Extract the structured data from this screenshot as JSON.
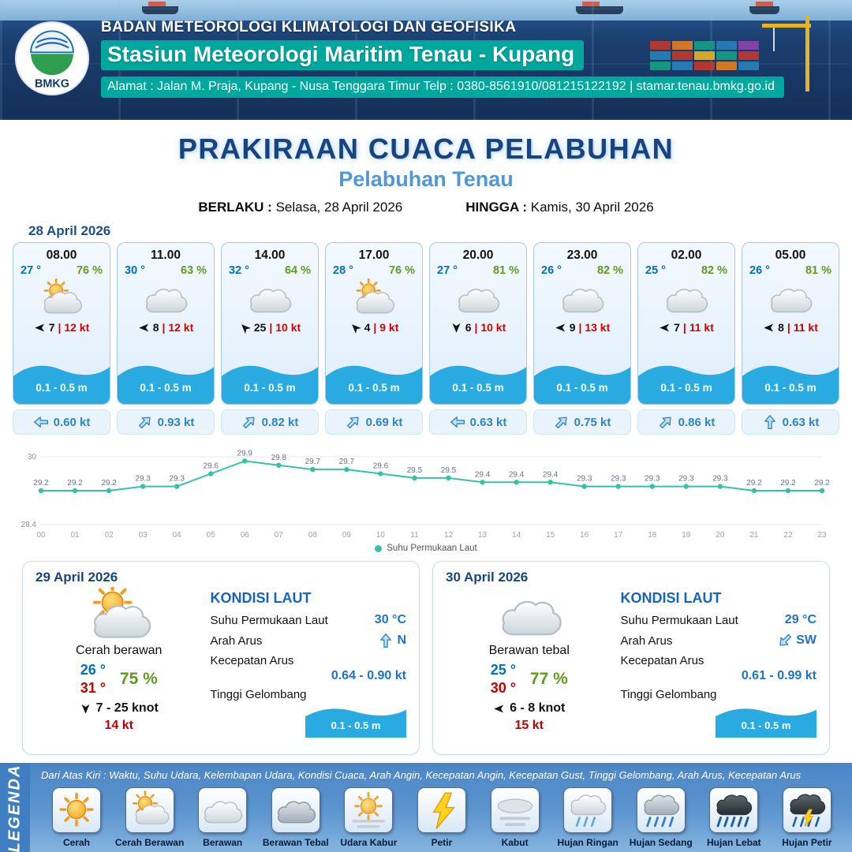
{
  "header": {
    "logo_text": "BMKG",
    "agency": "BADAN METEOROLOGI KLIMATOLOGI DAN GEOFISIKA",
    "station": "Stasiun Meteorologi Maritim Tenau - Kupang",
    "address": "Alamat : Jalan M. Praja, Kupang - Nusa Tenggara Timur Telp : 0380-8561910/081215122192  | stamar.tenau.bmkg.go.id"
  },
  "title": {
    "main": "PRAKIRAAN CUACA PELABUHAN",
    "subtitle": "Pelabuhan Tenau",
    "valid_label": "BERLAKU :",
    "valid_value": "Selasa, 28 April 2026",
    "until_label": "HINGGA :",
    "until_value": "Kamis, 30 April 2026"
  },
  "forecast_date": "28 April 2026",
  "cards": [
    {
      "time": "08.00",
      "temp": "27 °",
      "humidity": "76 %",
      "icon": "cerah-berawan",
      "wind_dir": "W",
      "wind_speed": "7",
      "wind_gust": "| 12 kt",
      "wave": "0.1 - 0.5 m",
      "current_dir": "W",
      "current_speed": "0.60 kt"
    },
    {
      "time": "11.00",
      "temp": "30 °",
      "humidity": "63 %",
      "icon": "berawan",
      "wind_dir": "W",
      "wind_speed": "8",
      "wind_gust": "| 12 kt",
      "wave": "0.1 - 0.5 m",
      "current_dir": "NE",
      "current_speed": "0.93 kt"
    },
    {
      "time": "14.00",
      "temp": "32 °",
      "humidity": "64 %",
      "icon": "berawan",
      "wind_dir": "NW",
      "wind_speed": "25",
      "wind_gust": "| 10 kt",
      "wave": "0.1 - 0.5 m",
      "current_dir": "NE",
      "current_speed": "0.82 kt"
    },
    {
      "time": "17.00",
      "temp": "28 °",
      "humidity": "76 %",
      "icon": "cerah-berawan",
      "wind_dir": "NW",
      "wind_speed": "4",
      "wind_gust": "| 9 kt",
      "wave": "0.1 - 0.5 m",
      "current_dir": "NE",
      "current_speed": "0.69 kt"
    },
    {
      "time": "20.00",
      "temp": "27 °",
      "humidity": "81 %",
      "icon": "berawan",
      "wind_dir": "S",
      "wind_speed": "6",
      "wind_gust": "| 10 kt",
      "wave": "0.1 - 0.5 m",
      "current_dir": "W",
      "current_speed": "0.63 kt"
    },
    {
      "time": "23.00",
      "temp": "26 °",
      "humidity": "82 %",
      "icon": "berawan",
      "wind_dir": "W",
      "wind_speed": "9",
      "wind_gust": "| 13 kt",
      "wave": "0.1 - 0.5 m",
      "current_dir": "NE",
      "current_speed": "0.75 kt"
    },
    {
      "time": "02.00",
      "temp": "25 °",
      "humidity": "82 %",
      "icon": "berawan",
      "wind_dir": "W",
      "wind_speed": "7",
      "wind_gust": "| 11 kt",
      "wave": "0.1 - 0.5 m",
      "current_dir": "NE",
      "current_speed": "0.86 kt"
    },
    {
      "time": "05.00",
      "temp": "26 °",
      "humidity": "81 %",
      "icon": "berawan",
      "wind_dir": "W",
      "wind_speed": "8",
      "wind_gust": "| 11 kt",
      "wave": "0.1 - 0.5 m",
      "current_dir": "N",
      "current_speed": "0.63 kt"
    }
  ],
  "chart_data": {
    "type": "line",
    "x": [
      "00",
      "01",
      "02",
      "03",
      "04",
      "05",
      "06",
      "07",
      "08",
      "09",
      "10",
      "11",
      "12",
      "13",
      "14",
      "15",
      "16",
      "17",
      "18",
      "19",
      "20",
      "21",
      "22",
      "23"
    ],
    "series": [
      {
        "name": "Suhu Permukaan Laut",
        "values": [
          29.2,
          29.2,
          29.2,
          29.3,
          29.3,
          29.6,
          29.9,
          29.8,
          29.7,
          29.7,
          29.6,
          29.5,
          29.5,
          29.4,
          29.4,
          29.4,
          29.3,
          29.3,
          29.3,
          29.3,
          29.3,
          29.2,
          29.2,
          29.2
        ]
      }
    ],
    "ylim": [
      28.4,
      30
    ],
    "legend": "Suhu Permukaan Laut",
    "legend_position": "bottom",
    "grid": true,
    "line_color": "#35c0a8"
  },
  "day_summaries": [
    {
      "date": "29 April 2026",
      "condition": "Cerah berawan",
      "icon": "cerah-berawan",
      "temp_min": "26 °",
      "temp_max": "31 °",
      "humidity": "75 %",
      "wind_dir": "S",
      "wind_range": "7  - 25 knot",
      "gust": "14 kt",
      "sea": {
        "title": "KONDISI LAUT",
        "sst_label": "Suhu Permukaan Laut",
        "sst": "30 °C",
        "current_dir_label": "Arah Arus",
        "current_dir": "N",
        "current_speed_label": "Kecepatan Arus",
        "current_speed": "0.64 - 0.90 kt",
        "wave_label": "Tinggi Gelombang",
        "wave": "0.1 - 0.5 m"
      }
    },
    {
      "date": "30 April 2026",
      "condition": "Berawan tebal",
      "icon": "berawan",
      "temp_min": "25 °",
      "temp_max": "30 °",
      "humidity": "77 %",
      "wind_dir": "W",
      "wind_range": "6  - 8 knot",
      "gust": "15 kt",
      "sea": {
        "title": "KONDISI LAUT",
        "sst_label": "Suhu Permukaan Laut",
        "sst": "29 °C",
        "current_dir_label": "Arah Arus",
        "current_dir": "SW",
        "current_speed_label": "Kecepatan Arus",
        "current_speed": "0.61 - 0.99 kt",
        "wave_label": "Tinggi Gelombang",
        "wave": "0.1 - 0.5 m"
      }
    }
  ],
  "legend": {
    "label": "LEGENDA",
    "description": "Dari Atas Kiri : Waktu, Suhu Udara, Kelembapan Udara, Kondisi Cuaca, Arah Angin, Kecepatan Angin, Kecepatan Gust, Tinggi Gelombang, Arah Arus, Kecepatan Arus",
    "items": [
      {
        "label": "Cerah",
        "icon": "cerah"
      },
      {
        "label": "Cerah Berawan",
        "icon": "cerah-berawan"
      },
      {
        "label": "Berawan",
        "icon": "berawan"
      },
      {
        "label": "Berawan Tebal",
        "icon": "berawan-tebal"
      },
      {
        "label": "Udara Kabur",
        "icon": "udara-kabur"
      },
      {
        "label": "Petir",
        "icon": "petir"
      },
      {
        "label": "Kabut",
        "icon": "kabut"
      },
      {
        "label": "Hujan Ringan",
        "icon": "hujan-ringan"
      },
      {
        "label": "Hujan Sedang",
        "icon": "hujan-sedang"
      },
      {
        "label": "Hujan Lebat",
        "icon": "hujan-lebat"
      },
      {
        "label": "Hujan Petir",
        "icon": "hujan-petir"
      }
    ]
  },
  "colors": {
    "accent_teal": "#00a79d",
    "wave_blue": "#29abe2",
    "line_teal": "#35c0a8",
    "temp_blue": "#0070c0",
    "humidity_green": "#5e9c1e",
    "speed_red": "#d40000"
  }
}
